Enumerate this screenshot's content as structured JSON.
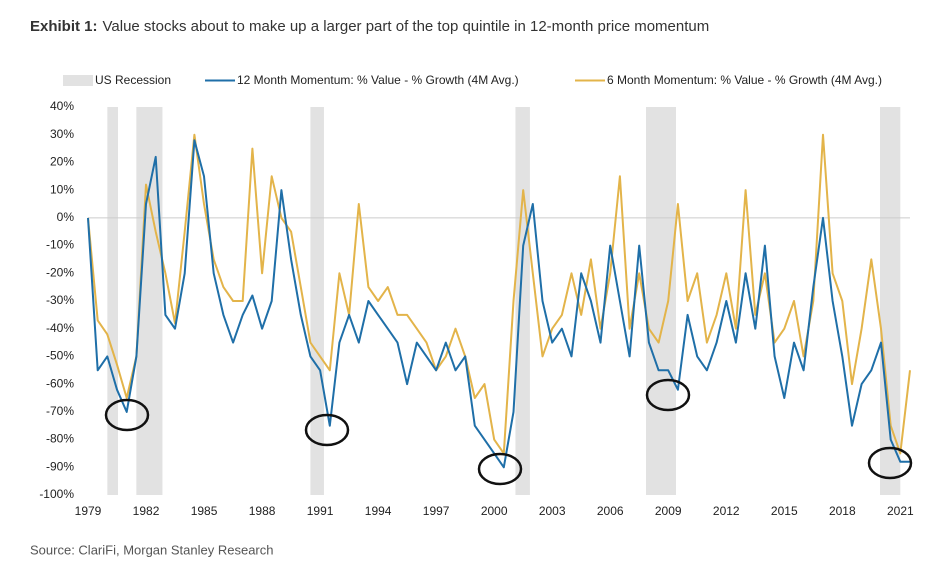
{
  "chart_data": {
    "type": "line",
    "title_label": "Exhibit 1:",
    "title": "Value stocks about to make up a larger part of the top quintile in 12-month price momentum",
    "source": "Source: ClariFi, Morgan Stanley Research",
    "x": [
      1979.0,
      1979.5,
      1980.0,
      1980.5,
      1981.0,
      1981.5,
      1982.0,
      1982.5,
      1983.0,
      1983.5,
      1984.0,
      1984.5,
      1985.0,
      1985.5,
      1986.0,
      1986.5,
      1987.0,
      1987.5,
      1988.0,
      1988.5,
      1989.0,
      1989.5,
      1990.0,
      1990.5,
      1991.0,
      1991.5,
      1992.0,
      1992.5,
      1993.0,
      1993.5,
      1994.0,
      1994.5,
      1995.0,
      1995.5,
      1996.0,
      1996.5,
      1997.0,
      1997.5,
      1998.0,
      1998.5,
      1999.0,
      1999.5,
      2000.0,
      2000.5,
      2001.0,
      2001.5,
      2002.0,
      2002.5,
      2003.0,
      2003.5,
      2004.0,
      2004.5,
      2005.0,
      2005.5,
      2006.0,
      2006.5,
      2007.0,
      2007.5,
      2008.0,
      2008.5,
      2009.0,
      2009.5,
      2010.0,
      2010.5,
      2011.0,
      2011.5,
      2012.0,
      2012.5,
      2013.0,
      2013.5,
      2014.0,
      2014.5,
      2015.0,
      2015.5,
      2016.0,
      2016.5,
      2017.0,
      2017.5,
      2018.0,
      2018.5,
      2019.0,
      2019.5,
      2020.0,
      2020.5,
      2021.0,
      2021.5
    ],
    "series": [
      {
        "name": "12 Month Momentum: % Value - % Growth (4M Avg.)",
        "color": "#1f6fa8",
        "values": [
          0,
          -55,
          -50,
          -62,
          -70,
          -50,
          5,
          22,
          -35,
          -40,
          -20,
          28,
          15,
          -20,
          -35,
          -45,
          -35,
          -28,
          -40,
          -30,
          10,
          -15,
          -35,
          -50,
          -55,
          -75,
          -45,
          -35,
          -45,
          -30,
          -35,
          -40,
          -45,
          -60,
          -45,
          -50,
          -55,
          -45,
          -55,
          -50,
          -75,
          -80,
          -85,
          -90,
          -70,
          -10,
          5,
          -30,
          -45,
          -40,
          -50,
          -20,
          -30,
          -45,
          -10,
          -30,
          -50,
          -10,
          -45,
          -55,
          -55,
          -62,
          -35,
          -50,
          -55,
          -45,
          -30,
          -45,
          -20,
          -40,
          -10,
          -50,
          -65,
          -45,
          -55,
          -25,
          0,
          -30,
          -50,
          -75,
          -60,
          -55,
          -45,
          -80,
          -88,
          -88
        ]
      },
      {
        "name": "6 Month Momentum: % Value - % Growth (4M Avg.)",
        "color": "#e3b44a",
        "values": [
          0,
          -37,
          -42,
          -53,
          -65,
          -50,
          12,
          -5,
          -20,
          -38,
          -5,
          30,
          5,
          -15,
          -25,
          -30,
          -30,
          25,
          -20,
          15,
          0,
          -5,
          -25,
          -45,
          -50,
          -55,
          -20,
          -35,
          5,
          -25,
          -30,
          -25,
          -35,
          -35,
          -40,
          -45,
          -55,
          -50,
          -40,
          -50,
          -65,
          -60,
          -80,
          -85,
          -30,
          10,
          -20,
          -50,
          -40,
          -35,
          -20,
          -35,
          -15,
          -40,
          -20,
          15,
          -40,
          -20,
          -40,
          -45,
          -30,
          5,
          -30,
          -20,
          -45,
          -35,
          -20,
          -40,
          10,
          -35,
          -20,
          -45,
          -40,
          -30,
          -50,
          -30,
          30,
          -20,
          -30,
          -60,
          -40,
          -15,
          -40,
          -75,
          -85,
          -55
        ]
      }
    ],
    "recession": {
      "name": "US Recession",
      "color": "#e2e2e2",
      "periods": [
        [
          1980.0,
          1980.55
        ],
        [
          1981.5,
          1982.85
        ],
        [
          1990.5,
          1991.2
        ],
        [
          2001.1,
          2001.85
        ],
        [
          2007.85,
          2009.4
        ],
        [
          2019.95,
          2021.0
        ]
      ]
    },
    "xlim": [
      1979,
      2021.5
    ],
    "xticks": [
      1979,
      1982,
      1985,
      1988,
      1991,
      1994,
      1997,
      2000,
      2003,
      2006,
      2009,
      2012,
      2015,
      2018,
      2021
    ],
    "ylim": [
      -100,
      40
    ],
    "yticks": [
      {
        "value": 40,
        "label": "40%"
      },
      {
        "value": 30,
        "label": "30%"
      },
      {
        "value": 20,
        "label": "20%"
      },
      {
        "value": 10,
        "label": "10%"
      },
      {
        "value": 0,
        "label": "0%"
      },
      {
        "value": -10,
        "label": "-10%"
      },
      {
        "value": -20,
        "label": "-20%"
      },
      {
        "value": -30,
        "label": "-30%"
      },
      {
        "value": -40,
        "label": "-40%"
      },
      {
        "value": -50,
        "label": "-50%"
      },
      {
        "value": -60,
        "label": "-60%"
      },
      {
        "value": -70,
        "label": "-70%"
      },
      {
        "value": -80,
        "label": "-80%"
      },
      {
        "value": -90,
        "label": "-90%"
      },
      {
        "value": -100,
        "label": "-100%"
      }
    ],
    "zero_line": true,
    "legend": "top"
  }
}
